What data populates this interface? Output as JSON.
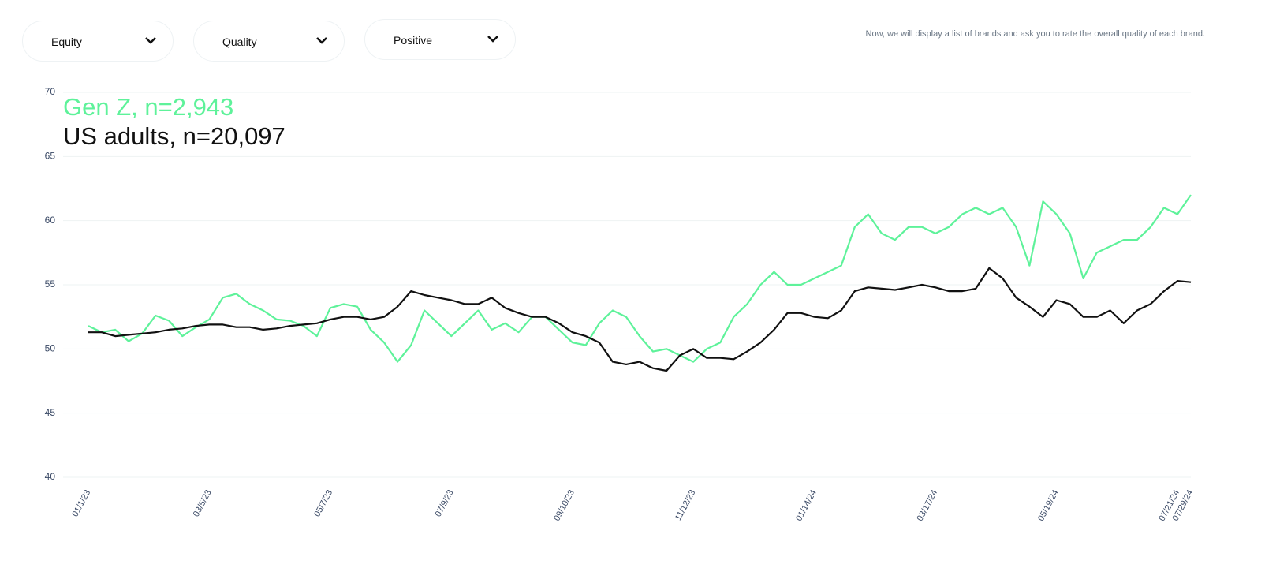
{
  "controls": [
    "Equity",
    "Quality",
    "Positive"
  ],
  "note": "Now, we will display a list of brands and ask you to rate the overall quality of each brand.",
  "chart_data": {
    "type": "line",
    "categories": [
      "01/1/23",
      null,
      null,
      null,
      null,
      null,
      null,
      null,
      null,
      "03/5/23",
      null,
      null,
      null,
      null,
      null,
      null,
      null,
      null,
      "05/7/23",
      null,
      null,
      null,
      null,
      null,
      null,
      null,
      null,
      "07/9/23",
      null,
      null,
      null,
      null,
      null,
      null,
      null,
      null,
      "09/10/23",
      null,
      null,
      null,
      null,
      null,
      null,
      null,
      null,
      "11/12/23",
      null,
      null,
      null,
      null,
      null,
      null,
      null,
      null,
      "01/14/24",
      null,
      null,
      null,
      null,
      null,
      null,
      null,
      null,
      "03/17/24",
      null,
      null,
      null,
      null,
      null,
      null,
      null,
      null,
      "05/19/24",
      null,
      null,
      null,
      null,
      null,
      null,
      null,
      null,
      "07/21/24",
      "07/29/24"
    ],
    "series": [
      {
        "name": "Gen Z, n=2,943",
        "color": "#5ef29a",
        "values": [
          51.8,
          51.3,
          51.5,
          50.6,
          51.2,
          52.6,
          52.2,
          51.0,
          51.7,
          52.3,
          54.0,
          54.3,
          53.5,
          53.0,
          52.3,
          52.2,
          51.8,
          51.0,
          53.2,
          53.5,
          53.3,
          51.5,
          50.5,
          49.0,
          50.3,
          53.0,
          52.0,
          51.0,
          52.0,
          53.0,
          51.5,
          52.0,
          51.3,
          52.5,
          52.5,
          51.5,
          50.5,
          50.3,
          52.0,
          53.0,
          52.5,
          51.0,
          49.8,
          50.0,
          49.5,
          49.0,
          50.0,
          50.5,
          52.5,
          53.5,
          55.0,
          56.0,
          55.0,
          55.0,
          55.5,
          56.0,
          56.5,
          59.5,
          60.5,
          59.0,
          58.5,
          59.5,
          59.5,
          59.0,
          59.5,
          60.5,
          61.0,
          60.5,
          61.0,
          59.5,
          56.5,
          61.5,
          60.5,
          59.0,
          55.5,
          57.5,
          58.0,
          58.5,
          58.5,
          59.5,
          61.0,
          60.5,
          62.0
        ]
      },
      {
        "name": "US adults, n=20,097",
        "color": "#111111",
        "values": [
          51.3,
          51.3,
          51.0,
          51.1,
          51.2,
          51.3,
          51.5,
          51.6,
          51.8,
          51.9,
          51.9,
          51.7,
          51.7,
          51.5,
          51.6,
          51.8,
          51.9,
          52.0,
          52.3,
          52.5,
          52.5,
          52.3,
          52.5,
          53.3,
          54.5,
          54.2,
          54.0,
          53.8,
          53.5,
          53.5,
          54.0,
          53.2,
          52.8,
          52.5,
          52.5,
          52.0,
          51.3,
          51.0,
          50.5,
          49.0,
          48.8,
          49.0,
          48.5,
          48.3,
          49.5,
          50.0,
          49.3,
          49.3,
          49.2,
          49.8,
          50.5,
          51.5,
          52.8,
          52.8,
          52.5,
          52.4,
          53.0,
          54.5,
          54.8,
          54.7,
          54.6,
          54.8,
          55.0,
          54.8,
          54.5,
          54.5,
          54.7,
          56.3,
          55.5,
          54.0,
          53.3,
          52.5,
          53.8,
          53.5,
          52.5,
          52.5,
          53.0,
          52.0,
          53.0,
          53.5,
          54.5,
          55.3,
          55.2
        ]
      }
    ],
    "ylim": [
      40,
      70
    ],
    "yticks": [
      40,
      45,
      50,
      55,
      60,
      65,
      70
    ],
    "grid": true
  }
}
